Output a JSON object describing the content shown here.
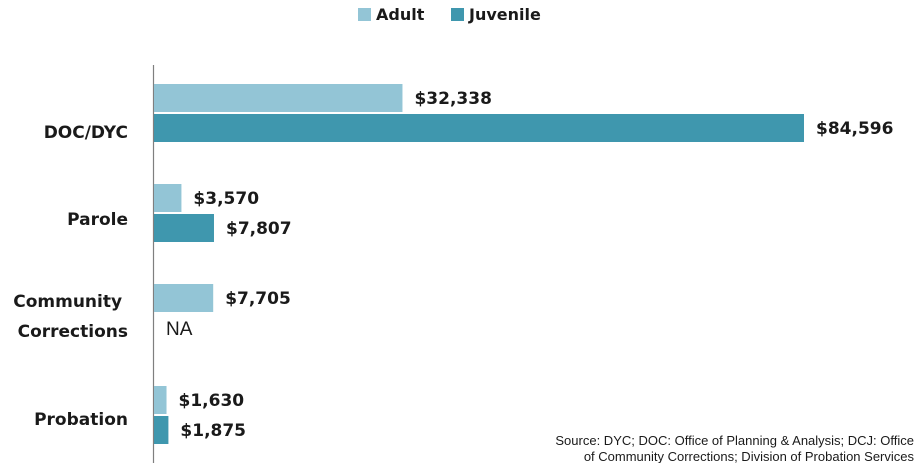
{
  "chart_data": {
    "type": "bar",
    "orientation": "horizontal",
    "categories": [
      "DOC/DYC",
      "Parole",
      "Community Corrections",
      "Probation"
    ],
    "series": [
      {
        "name": "Adult",
        "color": "#93C5D6",
        "values": [
          32338,
          3570,
          7705,
          1630
        ],
        "labels": [
          "$32,338",
          "$3,570",
          "$7,705",
          "$1,630"
        ]
      },
      {
        "name": "Juvenile",
        "color": "#3F97AE",
        "values": [
          84596,
          7807,
          null,
          1875
        ],
        "labels": [
          "$84,596",
          "$7,807",
          "NA",
          "$1,875"
        ]
      }
    ],
    "xlim": [
      0,
      84596
    ],
    "legend": "top-center",
    "grid": false
  },
  "source_lines": [
    "Source: DYC; DOC: Office of Planning & Analysis; DCJ: Office",
    "of Community Corrections; Division of Probation Services"
  ]
}
